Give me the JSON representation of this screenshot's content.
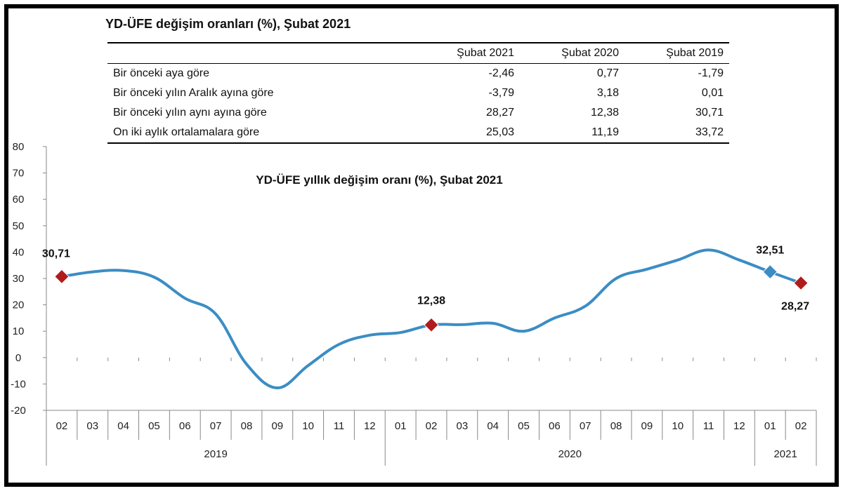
{
  "table": {
    "title": "YD-ÜFE değişim oranları (%), Şubat 2021",
    "headers": [
      "",
      "Şubat 2021",
      "Şubat 2020",
      "Şubat 2019"
    ],
    "rows": [
      {
        "label": "Bir önceki aya göre",
        "values": [
          "-2,46",
          "0,77",
          "-1,79"
        ]
      },
      {
        "label": "Bir önceki yılın Aralık ayına göre",
        "values": [
          "-3,79",
          "3,18",
          "0,01"
        ]
      },
      {
        "label": "Bir önceki yılın aynı ayına göre",
        "values": [
          "28,27",
          "12,38",
          "30,71"
        ]
      },
      {
        "label": "On iki aylık ortalamalara göre",
        "values": [
          "25,03",
          "11,19",
          "33,72"
        ]
      }
    ]
  },
  "chart_data": {
    "type": "line",
    "title": "YD-ÜFE yıllık değişim oranı (%), Şubat 2021",
    "categories": [
      "02",
      "03",
      "04",
      "05",
      "06",
      "07",
      "08",
      "09",
      "10",
      "11",
      "12",
      "01",
      "02",
      "03",
      "04",
      "05",
      "06",
      "07",
      "08",
      "09",
      "10",
      "11",
      "12",
      "01",
      "02"
    ],
    "years": [
      {
        "label": "2019",
        "start": 0,
        "end": 10
      },
      {
        "label": "2020",
        "start": 11,
        "end": 22
      },
      {
        "label": "2021",
        "start": 23,
        "end": 24
      }
    ],
    "series": [
      {
        "name": "",
        "color": "#3b8dc4",
        "values": [
          30.71,
          32.5,
          33.0,
          30.5,
          22.5,
          16.5,
          -2.5,
          -11.5,
          -3.0,
          5.0,
          8.5,
          9.5,
          12.38,
          12.5,
          13.0,
          10.0,
          15.0,
          19.5,
          30.0,
          33.5,
          37.0,
          40.8,
          37.0,
          32.51,
          28.27
        ]
      }
    ],
    "ylim": [
      -20,
      80
    ],
    "yticks": [
      -20,
      -10,
      0,
      10,
      20,
      30,
      40,
      50,
      60,
      70,
      80
    ],
    "ytick_labels": [
      "-20",
      "-10",
      "0",
      "10",
      "20",
      "30",
      "40",
      "50",
      "60",
      "70",
      "80"
    ],
    "markers": [
      {
        "index": 0,
        "label": "30,71",
        "color": "#b01c1c",
        "shape": "diamond"
      },
      {
        "index": 12,
        "label": "12,38",
        "color": "#b01c1c",
        "shape": "diamond"
      },
      {
        "index": 23,
        "label": "32,51",
        "color": "#3b8dc4",
        "shape": "diamond"
      },
      {
        "index": 24,
        "label": "28,27",
        "color": "#b01c1c",
        "shape": "diamond"
      }
    ],
    "xlabel": "",
    "ylabel": "",
    "grid": false
  }
}
